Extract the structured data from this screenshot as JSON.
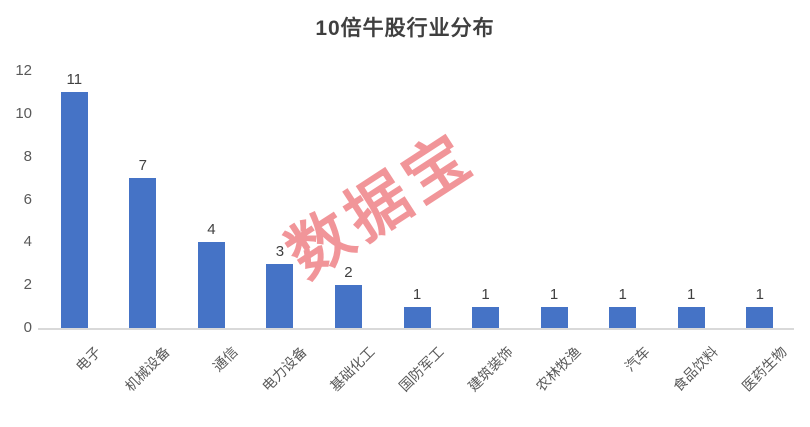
{
  "title": "10倍牛股行业分布",
  "watermark_text": "数据宝",
  "colors": {
    "bar": "#4573c6",
    "title_text": "#3f3f3f",
    "axis_tick_text": "#595959",
    "value_label_text": "#404040",
    "axis_line": "#d9d9d9",
    "watermark": "#ee7e83"
  },
  "chart_data": {
    "type": "bar",
    "title": "10倍牛股行业分布",
    "categories": [
      "电子",
      "机械设备",
      "通信",
      "电力设备",
      "基础化工",
      "国防军工",
      "建筑装饰",
      "农林牧渔",
      "汽车",
      "食品饮料",
      "医药生物"
    ],
    "values": [
      11,
      7,
      4,
      3,
      2,
      1,
      1,
      1,
      1,
      1,
      1
    ],
    "xlabel": "",
    "ylabel": "",
    "ylim": [
      0,
      12
    ],
    "yticks": [
      0,
      2,
      4,
      6,
      8,
      10,
      12
    ],
    "grid": false,
    "legend": false,
    "data_labels": true,
    "x_tick_rotation_deg": 45,
    "watermark": "数据宝"
  }
}
